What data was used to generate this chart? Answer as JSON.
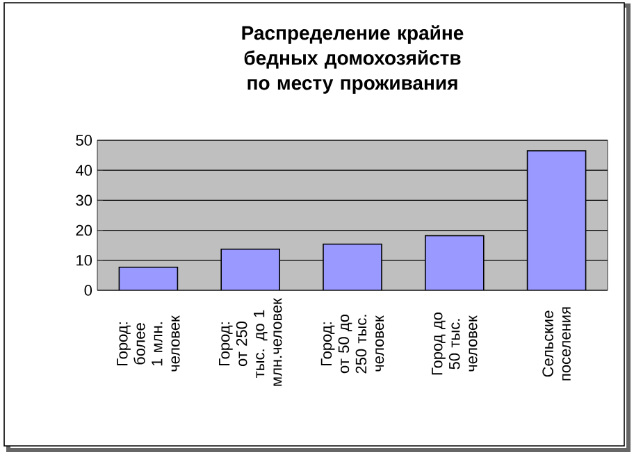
{
  "chart_data": {
    "type": "bar",
    "title": "Распределение крайне бедных домохозяйств по месту проживания",
    "categories": [
      "Город: более 1 млн. человек",
      "Город: от 250 тыс. до 1 млн.человек",
      "Город: от 50 до 250 тыс. человек",
      "Город до 50 тыс. человек",
      "Сельские поселения"
    ],
    "values": [
      7.7,
      13.7,
      15.4,
      18.2,
      46.5
    ],
    "color": "#9999ff",
    "ylim": [
      0,
      50
    ],
    "yticks": [
      0,
      10,
      20,
      30,
      40,
      50
    ],
    "grid": "y"
  }
}
